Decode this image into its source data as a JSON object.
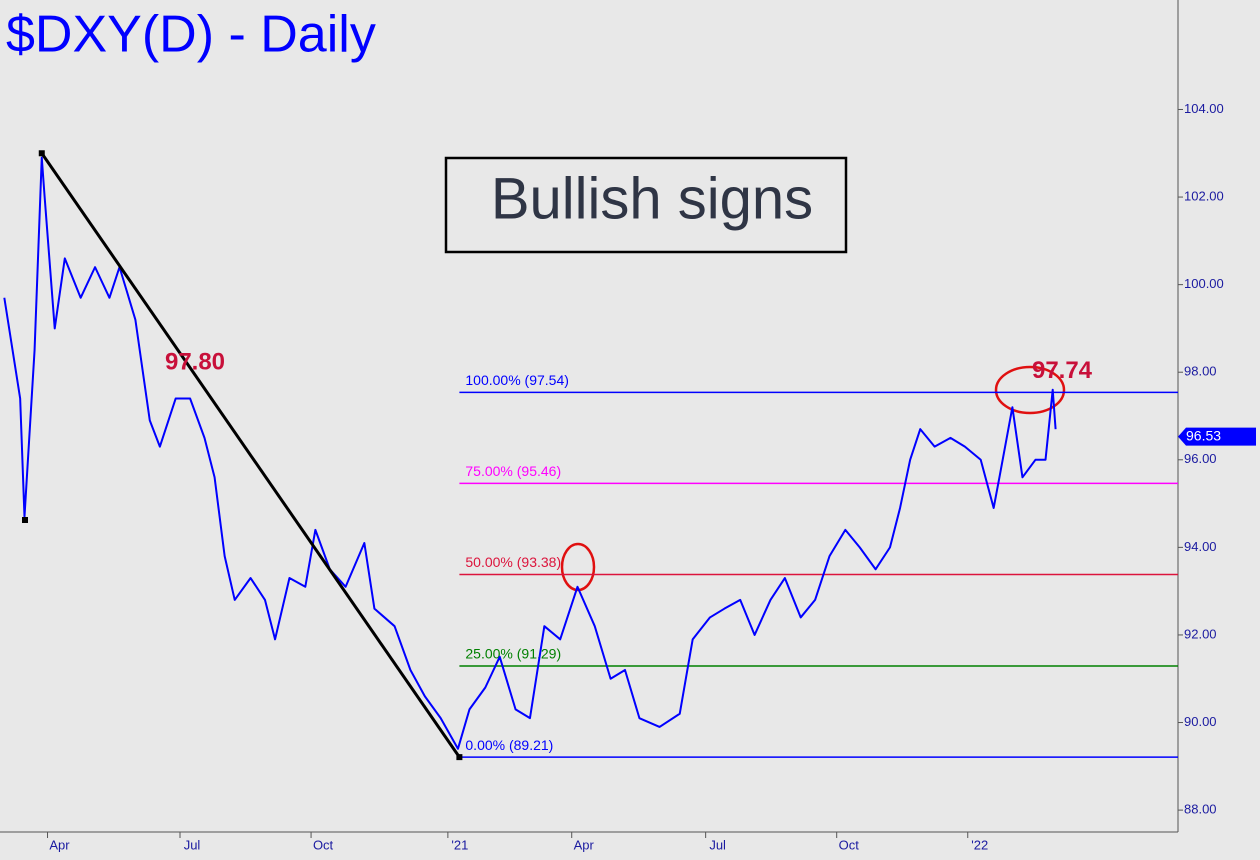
{
  "chart_data": {
    "type": "line",
    "title": "$DXY(D) - Daily",
    "callout": "Bullish signs",
    "x": [
      3,
      14,
      17,
      24,
      29,
      31,
      38,
      45,
      56,
      66,
      76,
      83,
      94,
      104,
      111,
      122,
      132,
      142,
      149,
      156,
      163,
      174,
      184,
      191,
      201,
      212,
      219,
      229,
      240,
      253,
      260,
      274,
      285,
      295,
      306,
      318,
      326,
      337,
      347,
      358,
      368,
      378,
      389,
      401,
      413,
      424,
      434,
      444,
      458,
      472,
      481,
      493,
      503,
      514,
      524,
      535,
      545,
      556,
      566,
      576,
      587,
      597,
      608,
      618,
      625,
      632,
      639,
      649,
      660,
      670,
      681,
      690,
      694,
      703,
      710,
      719,
      726,
      731,
      733
    ],
    "series": [
      {
        "color": "#0000ff",
        "values": [
          99.7,
          97.4,
          94.7,
          98.5,
          102.9,
          102.0,
          99.0,
          100.6,
          99.7,
          100.4,
          99.7,
          100.4,
          99.2,
          96.9,
          96.3,
          97.4,
          97.4,
          96.5,
          95.6,
          93.8,
          92.8,
          93.3,
          92.8,
          91.9,
          93.3,
          93.1,
          94.4,
          93.5,
          93.1,
          94.1,
          92.6,
          92.2,
          91.2,
          90.6,
          90.1,
          89.4,
          90.3,
          90.8,
          91.5,
          90.3,
          90.1,
          92.2,
          91.9,
          93.1,
          92.2,
          91.0,
          91.2,
          90.1,
          89.9,
          90.2,
          91.9,
          92.4,
          92.6,
          92.8,
          92.0,
          92.8,
          93.3,
          92.4,
          92.8,
          93.8,
          94.4,
          94.0,
          93.5,
          94.0,
          94.9,
          96.0,
          96.7,
          96.3,
          96.5,
          96.3,
          96.0,
          94.9,
          95.6,
          97.2,
          95.6,
          96.0,
          96.0,
          97.6,
          96.7
        ]
      }
    ],
    "trendline": {
      "x": [
        29,
        319
      ],
      "values": [
        103.0,
        89.21
      ]
    },
    "fib_levels": [
      {
        "value": 97.54,
        "label": "100.00% (97.54)",
        "color": "#0000ff"
      },
      {
        "value": 95.46,
        "label": "75.00% (95.46)",
        "color": "#ff00ff"
      },
      {
        "value": 93.38,
        "label": "50.00% (93.38)",
        "color": "#dc143c"
      },
      {
        "value": 91.29,
        "label": "25.00% (91.29)",
        "color": "#008000"
      },
      {
        "value": 89.21,
        "label": "0.00% (89.21)",
        "color": "#0000ff"
      }
    ],
    "annotations": [
      {
        "value": 97.8,
        "label": "97.80"
      },
      {
        "value": 97.74,
        "label": "97.74"
      }
    ],
    "last_price": 96.53,
    "xlim": [
      0,
      818
    ],
    "ylim": [
      87.5,
      106.5
    ],
    "xticks": [
      {
        "value": 33,
        "label": "Apr"
      },
      {
        "value": 125,
        "label": "Jul"
      },
      {
        "value": 216,
        "label": "Oct"
      },
      {
        "value": 311,
        "label": "'21"
      },
      {
        "value": 397,
        "label": "Apr"
      },
      {
        "value": 490,
        "label": "Jul"
      },
      {
        "value": 581,
        "label": "Oct"
      },
      {
        "value": 672,
        "label": "'22"
      }
    ],
    "yticks": [
      {
        "value": 88,
        "label": "88.00"
      },
      {
        "value": 90,
        "label": "90.00"
      },
      {
        "value": 92,
        "label": "92.00"
      },
      {
        "value": 94,
        "label": "94.00"
      },
      {
        "value": 96,
        "label": "96.00"
      },
      {
        "value": 98,
        "label": "98.00"
      },
      {
        "value": 100,
        "label": "100.00"
      },
      {
        "value": 102,
        "label": "102.00"
      },
      {
        "value": 104,
        "label": "104.00"
      }
    ]
  }
}
